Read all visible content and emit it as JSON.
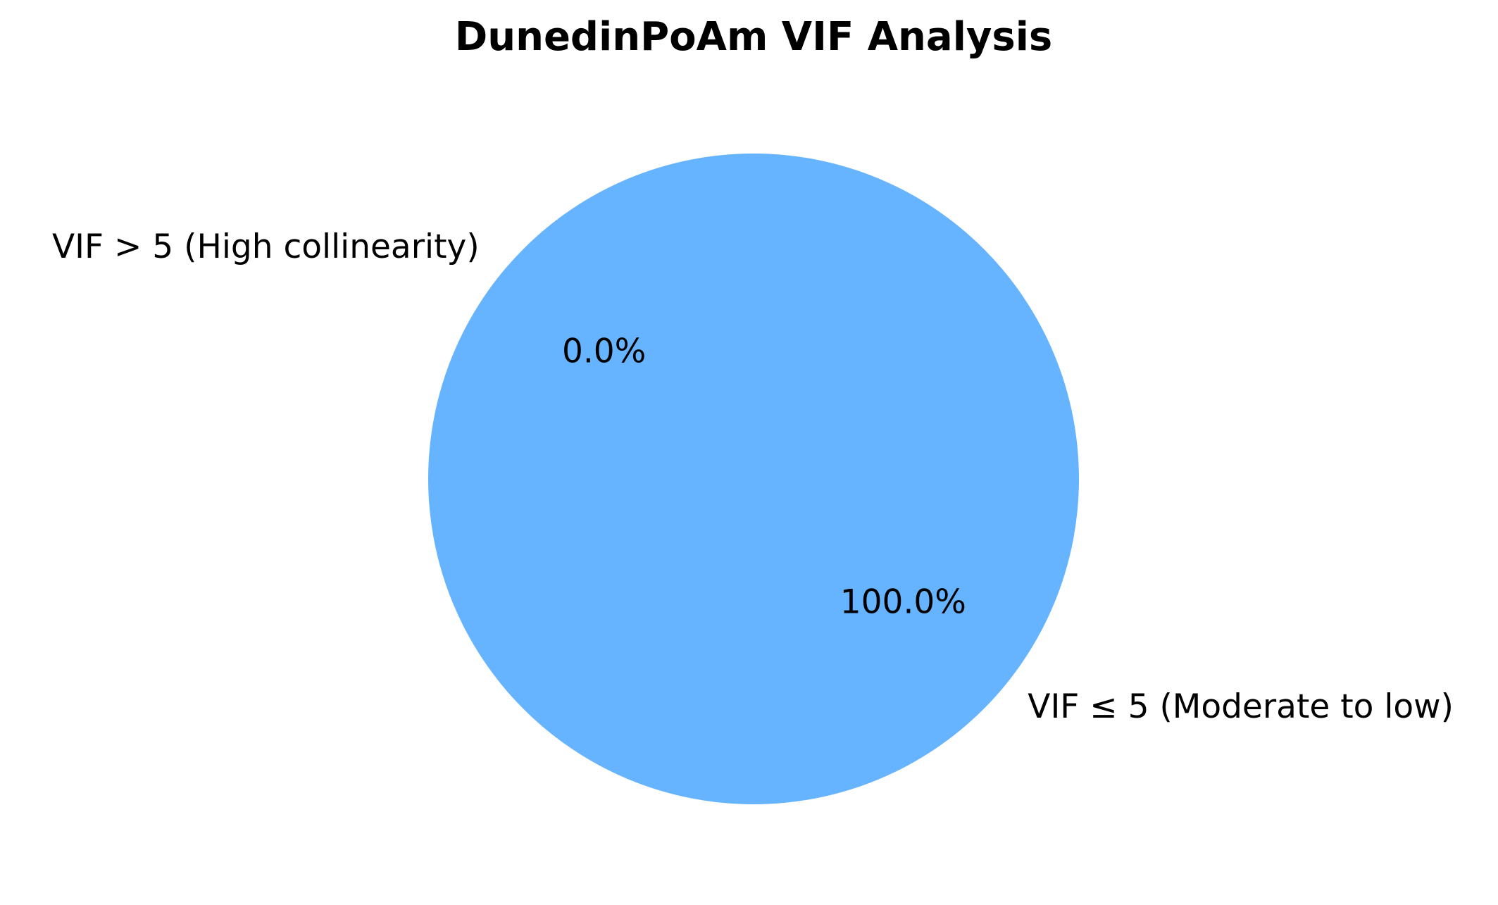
{
  "chart_data": {
    "type": "pie",
    "title": "DunedinPoAm VIF Analysis",
    "categories": [
      "VIF > 5 (High collinearity)",
      "VIF ≤ 5 (Moderate to low)"
    ],
    "values": [
      0,
      100
    ],
    "pct_labels": [
      "0.0%",
      "100.0%"
    ],
    "colors": [
      "#ff6666",
      "#66b3ff"
    ],
    "start_angle_deg": 140
  }
}
